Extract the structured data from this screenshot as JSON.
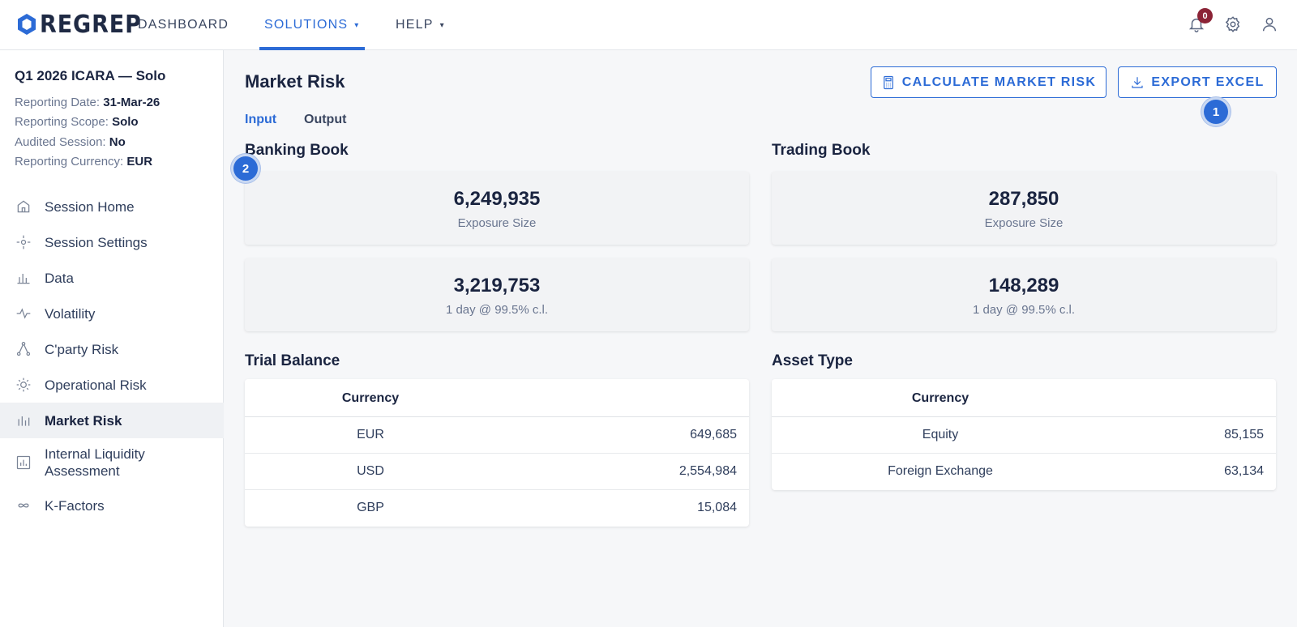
{
  "brand": {
    "name": "REGREP",
    "logo_icon": "hexagon-logo-icon"
  },
  "nav": {
    "items": [
      {
        "label": "DASHBOARD",
        "has_caret": false
      },
      {
        "label": "SOLUTIONS",
        "has_caret": true,
        "active": true
      },
      {
        "label": "HELP",
        "has_caret": true
      }
    ],
    "caret": "▾"
  },
  "header_icons": {
    "notification_count": "0",
    "icons": [
      "bell-icon",
      "gear-icon",
      "user-icon"
    ]
  },
  "session": {
    "title": "Q1 2026 ICARA — Solo",
    "reporting_date_label": "Reporting Date:",
    "reporting_date": "31-Mar-26",
    "reporting_scope_label": "Reporting Scope:",
    "reporting_scope": "Solo",
    "audited_session_label": "Audited Session:",
    "audited_session": "No",
    "reporting_currency_label": "Reporting Currency:",
    "reporting_currency": "EUR"
  },
  "sidebar": {
    "items": [
      {
        "label": "Session Home",
        "icon": "home-icon"
      },
      {
        "label": "Session Settings",
        "icon": "settings-icon"
      },
      {
        "label": "Data",
        "icon": "bar-chart-icon"
      },
      {
        "label": "Volatility",
        "icon": "pulse-icon"
      },
      {
        "label": "C'party Risk",
        "icon": "network-icon"
      },
      {
        "label": "Operational Risk",
        "icon": "sun-icon"
      },
      {
        "label": "Market Risk",
        "icon": "bars-icon",
        "active": true
      },
      {
        "label": "Internal Liquidity Assessment",
        "icon": "report-icon"
      },
      {
        "label": "K-Factors",
        "icon": "infinity-icon"
      }
    ]
  },
  "main": {
    "title": "Market Risk",
    "calculate_label": "CALCULATE MARKET RISK",
    "export_label": "EXPORT EXCEL",
    "tabs": [
      {
        "label": "Input",
        "active": true
      },
      {
        "label": "Output"
      }
    ],
    "banking_book": {
      "title": "Banking Book",
      "exposure_value": "6,249,935",
      "exposure_label": "Exposure Size",
      "var_value": "3,219,753",
      "var_label": "1 day @ 99.5% c.l."
    },
    "trading_book": {
      "title": "Trading Book",
      "exposure_value": "287,850",
      "exposure_label": "Exposure Size",
      "var_value": "148,289",
      "var_label": "1 day @ 99.5% c.l."
    },
    "trial_balance": {
      "title": "Trial Balance",
      "header": "Currency",
      "rows": [
        {
          "name": "EUR",
          "value": "649,685"
        },
        {
          "name": "USD",
          "value": "2,554,984"
        },
        {
          "name": "GBP",
          "value": "15,084"
        }
      ]
    },
    "asset_type": {
      "title": "Asset Type",
      "header": "Currency",
      "rows": [
        {
          "name": "Equity",
          "value": "85,155"
        },
        {
          "name": "Foreign Exchange",
          "value": "63,134"
        }
      ]
    }
  },
  "markers": [
    "1",
    "2"
  ],
  "colors": {
    "accent": "#2c6bd6",
    "badge": "#8b2336",
    "text": "#1a2440"
  }
}
